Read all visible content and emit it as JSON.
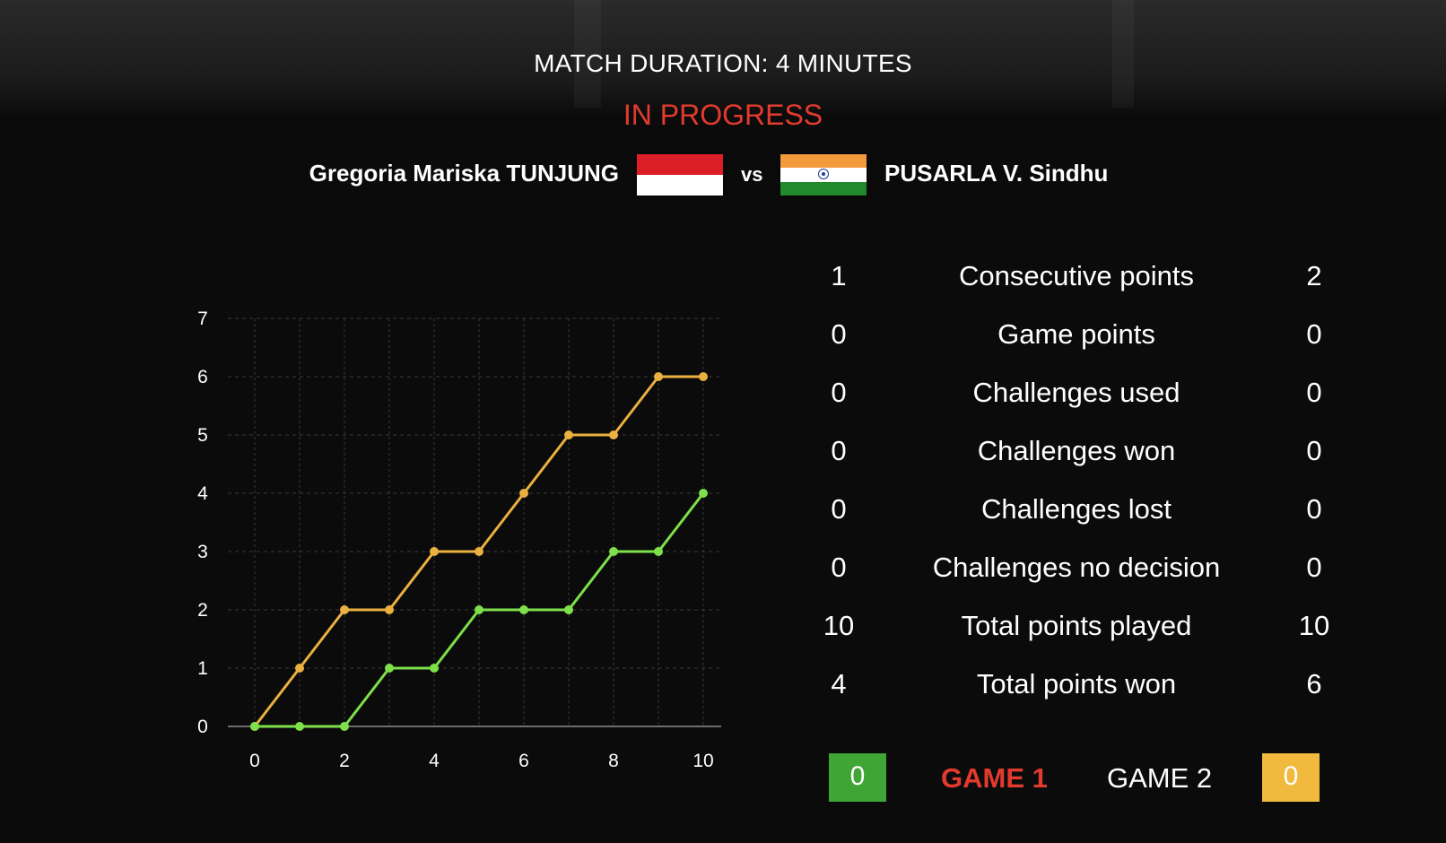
{
  "header": {
    "duration": "MATCH DURATION: 4 MINUTES",
    "status": "IN PROGRESS",
    "vs": "vs"
  },
  "players": {
    "left": {
      "name": "Gregoria Mariska TUNJUNG",
      "flag": "indonesia-flag"
    },
    "right": {
      "name": "PUSARLA V. Sindhu",
      "flag": "india-flag"
    }
  },
  "colors": {
    "status_red": "#e23b2e",
    "series_orange": "#eab040",
    "series_green": "#7ee04a",
    "score_green": "#3fa535",
    "score_yellow": "#f1b93d"
  },
  "stats": [
    {
      "left": "1",
      "label": "Consecutive points",
      "right": "2"
    },
    {
      "left": "0",
      "label": "Game points",
      "right": "0"
    },
    {
      "left": "0",
      "label": "Challenges used",
      "right": "0"
    },
    {
      "left": "0",
      "label": "Challenges won",
      "right": "0"
    },
    {
      "left": "0",
      "label": "Challenges lost",
      "right": "0"
    },
    {
      "left": "0",
      "label": "Challenges no decision",
      "right": "0"
    },
    {
      "left": "10",
      "label": "Total points played",
      "right": "10"
    },
    {
      "left": "4",
      "label": "Total points won",
      "right": "6"
    }
  ],
  "games": {
    "left_score": "0",
    "right_score": "0",
    "tabs": [
      {
        "label": "GAME 1",
        "active": true
      },
      {
        "label": "GAME 2",
        "active": false
      }
    ]
  },
  "chart_data": {
    "type": "line",
    "x": [
      0,
      1,
      2,
      3,
      4,
      5,
      6,
      7,
      8,
      9,
      10
    ],
    "series": [
      {
        "values": [
          0,
          1,
          2,
          2,
          3,
          3,
          4,
          5,
          5,
          6,
          6
        ],
        "color": "#eab040"
      },
      {
        "values": [
          0,
          0,
          0,
          1,
          1,
          2,
          2,
          2,
          3,
          3,
          4
        ],
        "color": "#7ee04a"
      }
    ],
    "xticks": [
      0,
      2,
      4,
      6,
      8,
      10
    ],
    "yticks": [
      0,
      1,
      2,
      3,
      4,
      5,
      6,
      7
    ],
    "xlim": [
      0,
      10
    ],
    "ylim": [
      0,
      7
    ],
    "grid": true
  }
}
